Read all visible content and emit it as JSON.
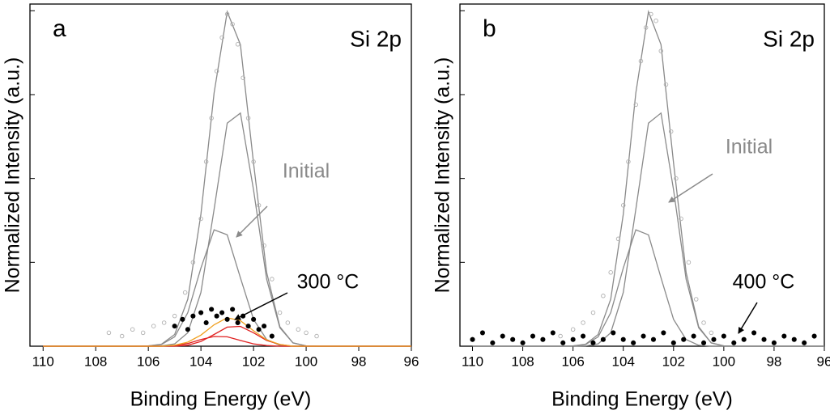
{
  "chart_data": [
    {
      "type": "line",
      "label": "a",
      "title": "Si 2p",
      "xlabel": "Binding Energy (eV)",
      "ylabel": "Normalized Intensity (a.u.)",
      "xlim": [
        110.5,
        96
      ],
      "xticks": [
        110,
        108,
        106,
        104,
        102,
        100,
        98,
        96
      ],
      "ylim": [
        0,
        1.02
      ],
      "yticks": [
        0,
        0.25,
        0.5,
        0.75,
        1
      ],
      "annotations": [
        "Initial",
        "300 °C"
      ],
      "x": [
        110,
        109.5,
        109,
        108.5,
        108,
        107.5,
        107,
        106.5,
        106,
        105.5,
        105,
        104.5,
        104,
        103.5,
        103,
        102.5,
        102,
        101.5,
        101,
        100.5,
        100,
        99.5,
        99,
        98.5,
        98,
        97.5,
        97,
        96.5,
        96
      ],
      "lines": [
        {
          "color": "#8a8a8a",
          "values": [
            0,
            0,
            0,
            0,
            0,
            0,
            0,
            0,
            0.001,
            0.006,
            0.035,
            0.14,
            0.393,
            0.755,
            0.997,
            0.899,
            0.546,
            0.22,
            0.058,
            0.01,
            0.001,
            0,
            0,
            0,
            0,
            0,
            0,
            0,
            0
          ]
        },
        {
          "color": "#8a8a8a",
          "values": [
            0,
            0,
            0,
            0,
            0,
            0,
            0,
            0,
            0,
            0.001,
            0.007,
            0.04,
            0.16,
            0.408,
            0.665,
            0.695,
            0.466,
            0.2,
            0.055,
            0.01,
            0.001,
            0,
            0,
            0,
            0,
            0,
            0,
            0,
            0
          ]
        },
        {
          "color": "#8a8a8a",
          "values": [
            0,
            0,
            0,
            0,
            0,
            0,
            0,
            0,
            0.001,
            0.005,
            0.028,
            0.1,
            0.233,
            0.347,
            0.332,
            0.204,
            0.08,
            0.02,
            0.003,
            0,
            0,
            0,
            0,
            0,
            0,
            0,
            0,
            0,
            0
          ]
        },
        {
          "color": "#e02020",
          "values": [
            0,
            0,
            0,
            0,
            0,
            0,
            0,
            0,
            0,
            0,
            0,
            0.003,
            0.014,
            0.035,
            0.057,
            0.059,
            0.04,
            0.017,
            0.005,
            0,
            0,
            0,
            0,
            0,
            0,
            0,
            0,
            0,
            0
          ]
        },
        {
          "color": "#e02020",
          "values": [
            0,
            0,
            0,
            0,
            0,
            0,
            0,
            0,
            0,
            0,
            0.002,
            0.008,
            0.02,
            0.029,
            0.028,
            0.017,
            0.007,
            0.002,
            0,
            0,
            0,
            0,
            0,
            0,
            0,
            0,
            0,
            0,
            0
          ]
        },
        {
          "color": "#f0a020",
          "values": [
            0,
            0,
            0,
            0,
            0,
            0,
            0,
            0,
            0,
            0,
            0.003,
            0.012,
            0.033,
            0.064,
            0.085,
            0.076,
            0.046,
            0.019,
            0.005,
            0,
            0,
            0,
            0,
            0,
            0,
            0,
            0,
            0,
            0
          ]
        }
      ],
      "points": [
        {
          "color": "#b0b0b0",
          "fill": "none",
          "x": [
            107.5,
            107,
            106.6,
            106.2,
            105.8,
            105.4,
            105,
            104.6,
            104.3,
            104,
            103.8,
            103.6,
            103.4,
            103.2,
            103,
            102.8,
            102.6,
            102.4,
            102.2,
            102,
            101.8,
            101.6,
            101.3,
            101,
            100.7,
            100.3,
            100,
            99.6
          ],
          "values": [
            0.04,
            0.03,
            0.05,
            0.04,
            0.06,
            0.07,
            0.09,
            0.16,
            0.25,
            0.38,
            0.55,
            0.68,
            0.82,
            0.92,
            0.99,
            0.96,
            0.9,
            0.8,
            0.68,
            0.55,
            0.42,
            0.3,
            0.2,
            0.1,
            0.07,
            0.05,
            0.04,
            0.03
          ]
        },
        {
          "color": "#000000",
          "fill": "#000000",
          "x": [
            105,
            104.7,
            104.5,
            104.3,
            104,
            103.8,
            103.6,
            103.4,
            103.2,
            103,
            102.8,
            102.6,
            102.4,
            102.2,
            102,
            101.8,
            101.6,
            101.3
          ],
          "values": [
            0.06,
            0.08,
            0.05,
            0.09,
            0.1,
            0.07,
            0.11,
            0.09,
            0.1,
            0.08,
            0.11,
            0.07,
            0.09,
            0.06,
            0.08,
            0.05,
            0.06,
            0.03
          ]
        }
      ]
    },
    {
      "type": "line",
      "label": "b",
      "title": "Si 2p",
      "xlabel": "Binding Energy (eV)",
      "ylabel": "Normalized Intensity (a.u.)",
      "xlim": [
        110.5,
        96
      ],
      "xticks": [
        110,
        108,
        106,
        104,
        102,
        100,
        98,
        96
      ],
      "ylim": [
        0,
        1.02
      ],
      "yticks": [
        0,
        0.25,
        0.5,
        0.75,
        1
      ],
      "annotations": [
        "Initial",
        "400 °C"
      ],
      "x": [
        110,
        109.5,
        109,
        108.5,
        108,
        107.5,
        107,
        106.5,
        106,
        105.5,
        105,
        104.5,
        104,
        103.5,
        103,
        102.5,
        102,
        101.5,
        101,
        100.5,
        100,
        99.5,
        99,
        98.5,
        98,
        97.5,
        97,
        96.5,
        96
      ],
      "lines": [
        {
          "color": "#8a8a8a",
          "values": [
            0,
            0,
            0,
            0,
            0,
            0,
            0,
            0,
            0.001,
            0.006,
            0.035,
            0.14,
            0.393,
            0.755,
            0.997,
            0.899,
            0.546,
            0.22,
            0.058,
            0.01,
            0.001,
            0,
            0,
            0,
            0,
            0,
            0,
            0,
            0
          ]
        },
        {
          "color": "#8a8a8a",
          "values": [
            0,
            0,
            0,
            0,
            0,
            0,
            0,
            0,
            0,
            0.001,
            0.007,
            0.04,
            0.16,
            0.408,
            0.665,
            0.695,
            0.466,
            0.2,
            0.055,
            0.01,
            0.001,
            0,
            0,
            0,
            0,
            0,
            0,
            0,
            0
          ]
        },
        {
          "color": "#8a8a8a",
          "values": [
            0,
            0,
            0,
            0,
            0,
            0,
            0,
            0,
            0.001,
            0.005,
            0.028,
            0.1,
            0.233,
            0.347,
            0.332,
            0.204,
            0.08,
            0.02,
            0.003,
            0,
            0,
            0,
            0,
            0,
            0,
            0,
            0,
            0,
            0
          ]
        }
      ],
      "points": [
        {
          "color": "#b0b0b0",
          "fill": "none",
          "x": [
            106.5,
            106,
            105.6,
            105.2,
            104.8,
            104.5,
            104.2,
            104,
            103.8,
            103.5,
            103.3,
            103.1,
            102.9,
            102.7,
            102.5,
            102.3,
            102.1,
            101.9,
            101.7,
            101.4,
            101.1,
            100.8,
            100.5
          ],
          "values": [
            0.03,
            0.05,
            0.07,
            0.1,
            0.15,
            0.22,
            0.32,
            0.42,
            0.55,
            0.72,
            0.85,
            0.95,
            0.99,
            0.97,
            0.88,
            0.78,
            0.64,
            0.5,
            0.38,
            0.25,
            0.14,
            0.07,
            0.04
          ]
        },
        {
          "color": "#000000",
          "fill": "#000000",
          "x": [
            110,
            109.6,
            109.2,
            108.8,
            108.4,
            108,
            107.6,
            107.2,
            106.8,
            106.4,
            106,
            105.6,
            105.2,
            104.8,
            104.4,
            104,
            103.6,
            103.2,
            102.8,
            102.4,
            102,
            101.6,
            101.2,
            100.8,
            100.4,
            100,
            99.6,
            99.2,
            98.8,
            98.4,
            98,
            97.6,
            97.2,
            96.8,
            96.4
          ],
          "values": [
            0.02,
            0.04,
            0.01,
            0.03,
            0.02,
            0.01,
            0.03,
            0.02,
            0.04,
            0.01,
            0.02,
            0.03,
            0.01,
            0.02,
            0.04,
            0.02,
            0.01,
            0.03,
            0.02,
            0.04,
            0.01,
            0.02,
            0.03,
            0.01,
            0.02,
            0.03,
            0.01,
            0.02,
            0.04,
            0.02,
            0.01,
            0.03,
            0.02,
            0.01,
            0.03
          ]
        }
      ]
    }
  ]
}
